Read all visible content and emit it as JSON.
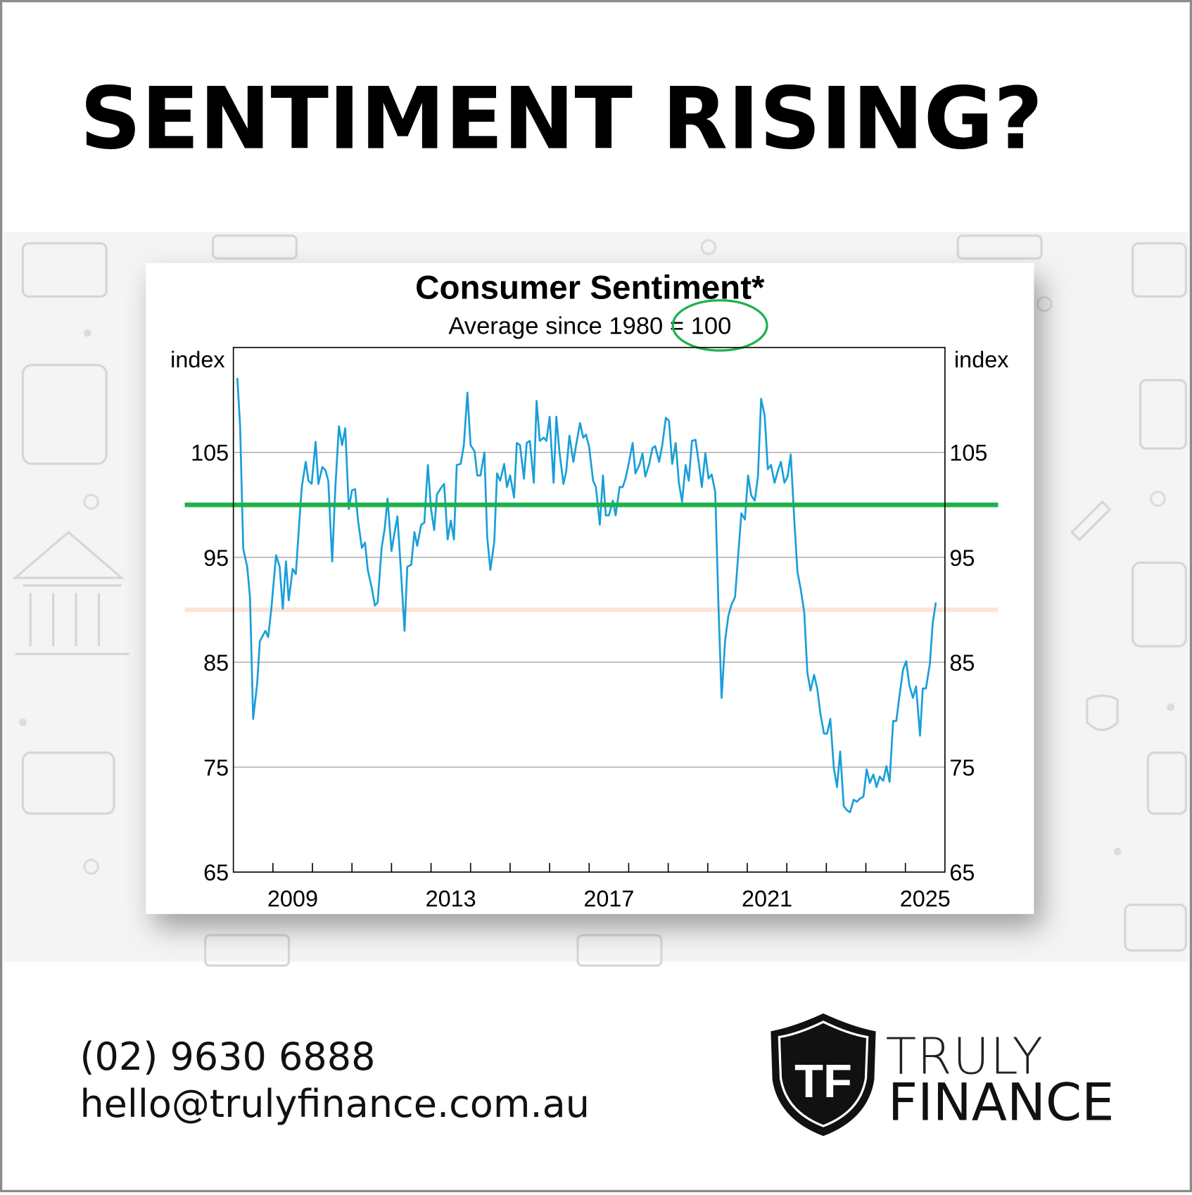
{
  "headline": "SENTIMENT RISING?",
  "contact": {
    "phone": "(02) 9630 6888",
    "email": "hello@trulyfinance.com.au"
  },
  "logo": {
    "mark": "TF",
    "line1": "TRULY",
    "line2": "FINANCE"
  },
  "chart_data": {
    "type": "line",
    "title": "Consumer Sentiment*",
    "subtitle": "Average since 1980 = 100",
    "y_label": "index",
    "y2_label": "index",
    "xlim": [
      2008,
      2026
    ],
    "ylim": [
      65,
      115
    ],
    "yticks": [
      65,
      75,
      85,
      95,
      105
    ],
    "xticks": [
      {
        "value": 2009.5,
        "label": "2009"
      },
      {
        "value": 2013.5,
        "label": "2013"
      },
      {
        "value": 2017.5,
        "label": "2017"
      },
      {
        "value": 2021.5,
        "label": "2021"
      },
      {
        "value": 2025.5,
        "label": "2025"
      }
    ],
    "xminor": [
      2009,
      2010,
      2011,
      2012,
      2013,
      2014,
      2015,
      2016,
      2017,
      2018,
      2019,
      2020,
      2021,
      2022,
      2023,
      2024,
      2025
    ],
    "grid": true,
    "reference_lines": [
      {
        "value": 100,
        "color": "#1db14b"
      },
      {
        "value": 90,
        "color": "#fbe4d8"
      }
    ],
    "x": [
      2008.1,
      2008.17,
      2008.25,
      2008.35,
      2008.42,
      2008.5,
      2008.6,
      2008.67,
      2008.81,
      2008.88,
      2008.96,
      2009.08,
      2009.17,
      2009.25,
      2009.33,
      2009.4,
      2009.5,
      2009.58,
      2009.65,
      2009.73,
      2009.83,
      2009.9,
      2009.98,
      2010.08,
      2010.15,
      2010.25,
      2010.33,
      2010.4,
      2010.5,
      2010.58,
      2010.67,
      2010.75,
      2010.83,
      2010.92,
      2011.0,
      2011.08,
      2011.15,
      2011.25,
      2011.33,
      2011.4,
      2011.5,
      2011.58,
      2011.65,
      2011.75,
      2011.83,
      2011.9,
      2012.0,
      2012.08,
      2012.15,
      2012.25,
      2012.33,
      2012.4,
      2012.5,
      2012.58,
      2012.65,
      2012.75,
      2012.83,
      2012.92,
      2013.0,
      2013.08,
      2013.15,
      2013.25,
      2013.33,
      2013.42,
      2013.5,
      2013.58,
      2013.65,
      2013.75,
      2013.83,
      2013.92,
      2014.0,
      2014.1,
      2014.17,
      2014.25,
      2014.35,
      2014.42,
      2014.5,
      2014.6,
      2014.67,
      2014.75,
      2014.85,
      2014.92,
      2015.0,
      2015.1,
      2015.17,
      2015.25,
      2015.35,
      2015.42,
      2015.5,
      2015.6,
      2015.67,
      2015.75,
      2015.85,
      2015.92,
      2016.0,
      2016.1,
      2016.17,
      2016.25,
      2016.35,
      2016.42,
      2016.5,
      2016.6,
      2016.67,
      2016.77,
      2016.85,
      2016.92,
      2017.0,
      2017.1,
      2017.17,
      2017.27,
      2017.35,
      2017.42,
      2017.5,
      2017.6,
      2017.67,
      2017.77,
      2017.85,
      2017.92,
      2018.02,
      2018.1,
      2018.17,
      2018.27,
      2018.35,
      2018.42,
      2018.52,
      2018.6,
      2018.67,
      2018.77,
      2018.85,
      2018.94,
      2019.02,
      2019.1,
      2019.19,
      2019.27,
      2019.35,
      2019.44,
      2019.52,
      2019.6,
      2019.69,
      2019.77,
      2019.85,
      2019.94,
      2020.02,
      2020.1,
      2020.19,
      2020.27,
      2020.35,
      2020.44,
      2020.52,
      2020.6,
      2020.69,
      2020.77,
      2020.85,
      2020.94,
      2021.02,
      2021.1,
      2021.19,
      2021.27,
      2021.35,
      2021.44,
      2021.52,
      2021.6,
      2021.69,
      2021.77,
      2021.85,
      2021.94,
      2022.02,
      2022.1,
      2022.19,
      2022.27,
      2022.35,
      2022.44,
      2022.52,
      2022.6,
      2022.69,
      2022.77,
      2022.85,
      2022.94,
      2023.02,
      2023.1,
      2023.19,
      2023.27,
      2023.35,
      2023.44,
      2023.52,
      2023.6,
      2023.69,
      2023.77,
      2023.85,
      2023.94,
      2024.02,
      2024.1,
      2024.19,
      2024.27,
      2024.35,
      2024.44,
      2024.52,
      2024.6,
      2024.69,
      2024.77,
      2024.85,
      2024.94,
      2025.02,
      2025.1,
      2025.19,
      2025.27,
      2025.37,
      2025.44,
      2025.52,
      2025.62,
      2025.69,
      2025.77
    ],
    "series": [
      {
        "name": "Consumer Sentiment",
        "color": "#1a9fd9",
        "values": [
          112.1,
          107.5,
          95.8,
          94.1,
          91.2,
          79.6,
          82.9,
          87.0,
          88.0,
          87.4,
          90.1,
          95.2,
          94.1,
          90.1,
          94.6,
          90.9,
          93.9,
          93.4,
          97.4,
          101.7,
          104.1,
          102.3,
          102.0,
          106.0,
          102.0,
          103.6,
          103.3,
          102.3,
          94.6,
          101.7,
          107.5,
          105.7,
          107.3,
          99.6,
          101.4,
          101.5,
          98.6,
          95.9,
          96.4,
          93.8,
          92.1,
          90.4,
          90.7,
          95.9,
          97.8,
          100.6,
          95.6,
          97.4,
          98.9,
          93.0,
          88.0,
          94.1,
          94.3,
          97.4,
          96.1,
          98.1,
          98.3,
          103.8,
          99.6,
          97.6,
          101.0,
          101.6,
          102.0,
          96.7,
          98.5,
          96.7,
          103.8,
          103.9,
          105.7,
          110.7,
          105.7,
          105.1,
          102.8,
          102.8,
          105.0,
          97.0,
          93.8,
          96.5,
          103.0,
          102.3,
          103.9,
          101.7,
          102.8,
          100.7,
          105.9,
          105.7,
          102.5,
          105.9,
          106.1,
          102.1,
          109.9,
          106.1,
          106.4,
          106.1,
          108.4,
          102.1,
          108.4,
          105.0,
          102.0,
          103.2,
          106.6,
          104.1,
          105.7,
          107.8,
          106.4,
          106.7,
          105.5,
          102.3,
          101.7,
          98.1,
          102.8,
          99.0,
          99.0,
          100.4,
          99.0,
          101.7,
          101.7,
          102.5,
          104.3,
          105.9,
          103.0,
          103.8,
          104.9,
          102.7,
          103.9,
          105.4,
          105.6,
          104.1,
          105.7,
          108.3,
          108.0,
          103.9,
          105.9,
          102.1,
          100.3,
          103.8,
          102.3,
          106.1,
          106.2,
          104.1,
          101.7,
          104.9,
          102.5,
          102.9,
          101.2,
          90.5,
          81.6,
          87.1,
          89.4,
          90.5,
          91.2,
          95.2,
          99.2,
          98.6,
          102.8,
          100.9,
          100.4,
          102.7,
          110.1,
          108.5,
          103.4,
          103.8,
          102.1,
          103.2,
          104.1,
          102.1,
          102.7,
          104.8,
          98.5,
          93.6,
          92.0,
          89.8,
          84.0,
          82.3,
          83.8,
          82.5,
          80.1,
          78.2,
          78.2,
          79.6,
          74.9,
          73.1,
          76.5,
          71.3,
          70.9,
          70.7,
          71.9,
          71.7,
          72.0,
          72.2,
          74.8,
          73.5,
          74.3,
          73.1,
          74.1,
          73.7,
          75.1,
          73.6,
          79.4,
          79.4,
          81.8,
          84.3,
          85.1,
          82.8,
          81.6,
          82.7,
          78.0,
          82.5,
          82.5,
          84.9,
          88.7,
          90.7
        ]
      }
    ]
  }
}
